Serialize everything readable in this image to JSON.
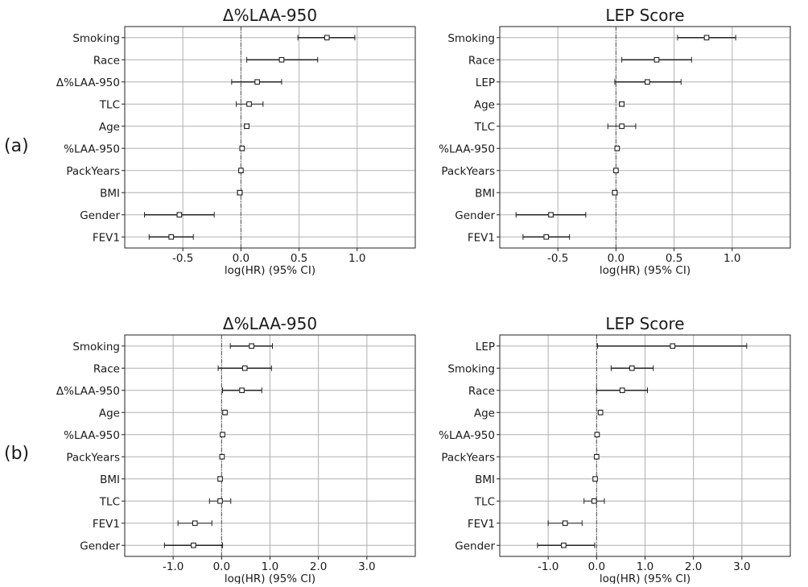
{
  "row_labels": [
    "(a)",
    "(b)"
  ],
  "chart_data": [
    {
      "type": "forest",
      "row": "(a)",
      "title": "Δ%LAA-950",
      "xlabel": "log(HR) (95% CI)",
      "xlim": [
        -1.0,
        1.5
      ],
      "xticks": [
        -0.5,
        0.0,
        0.5,
        1.0
      ],
      "xtick_labels": [
        "-0.5",
        "0.0",
        "0.5",
        "1.0"
      ],
      "grid": true,
      "reference_line": 0.0,
      "rows": [
        {
          "label": "Smoking",
          "estimate": 0.74,
          "ci": [
            0.49,
            0.98
          ]
        },
        {
          "label": "Race",
          "estimate": 0.35,
          "ci": [
            0.05,
            0.66
          ]
        },
        {
          "label": "Δ%LAA-950",
          "estimate": 0.14,
          "ci": [
            -0.08,
            0.35
          ]
        },
        {
          "label": "TLC",
          "estimate": 0.07,
          "ci": [
            -0.04,
            0.19
          ]
        },
        {
          "label": "Age",
          "estimate": 0.05,
          "ci": [
            0.03,
            0.07
          ]
        },
        {
          "label": "%LAA-950",
          "estimate": 0.01,
          "ci": [
            0.0,
            0.02
          ]
        },
        {
          "label": "PackYears",
          "estimate": 0.0,
          "ci": [
            -0.01,
            0.01
          ]
        },
        {
          "label": "BMI",
          "estimate": -0.01,
          "ci": [
            -0.03,
            0.01
          ]
        },
        {
          "label": "Gender",
          "estimate": -0.53,
          "ci": [
            -0.83,
            -0.23
          ]
        },
        {
          "label": "FEV1",
          "estimate": -0.6,
          "ci": [
            -0.79,
            -0.41
          ]
        }
      ]
    },
    {
      "type": "forest",
      "row": "(a)",
      "title": "LEP Score",
      "xlabel": "log(HR) (95% CI)",
      "xlim": [
        -1.0,
        1.5
      ],
      "xticks": [
        -0.5,
        0.0,
        0.5,
        1.0
      ],
      "xtick_labels": [
        "-0.5",
        "0.0",
        "0.5",
        "1.0"
      ],
      "grid": true,
      "reference_line": 0.0,
      "rows": [
        {
          "label": "Smoking",
          "estimate": 0.78,
          "ci": [
            0.53,
            1.03
          ]
        },
        {
          "label": "Race",
          "estimate": 0.35,
          "ci": [
            0.05,
            0.65
          ]
        },
        {
          "label": "LEP",
          "estimate": 0.27,
          "ci": [
            -0.01,
            0.56
          ]
        },
        {
          "label": "Age",
          "estimate": 0.05,
          "ci": [
            0.03,
            0.07
          ]
        },
        {
          "label": "TLC",
          "estimate": 0.05,
          "ci": [
            -0.07,
            0.17
          ]
        },
        {
          "label": "%LAA-950",
          "estimate": 0.01,
          "ci": [
            0.0,
            0.02
          ]
        },
        {
          "label": "PackYears",
          "estimate": 0.0,
          "ci": [
            -0.01,
            0.01
          ]
        },
        {
          "label": "BMI",
          "estimate": -0.01,
          "ci": [
            -0.03,
            0.01
          ]
        },
        {
          "label": "Gender",
          "estimate": -0.56,
          "ci": [
            -0.86,
            -0.26
          ]
        },
        {
          "label": "FEV1",
          "estimate": -0.6,
          "ci": [
            -0.8,
            -0.4
          ]
        }
      ]
    },
    {
      "type": "forest",
      "row": "(b)",
      "title": "Δ%LAA-950",
      "xlabel": "log(HR) (95% CI)",
      "xlim": [
        -2.0,
        4.0
      ],
      "xticks": [
        -1.0,
        0.0,
        1.0,
        2.0,
        3.0
      ],
      "xtick_labels": [
        "-1.0",
        "0.0",
        "1.0",
        "2.0",
        "3.0"
      ],
      "grid": true,
      "reference_line": 0.0,
      "rows": [
        {
          "label": "Smoking",
          "estimate": 0.62,
          "ci": [
            0.18,
            1.05
          ]
        },
        {
          "label": "Race",
          "estimate": 0.48,
          "ci": [
            -0.07,
            1.03
          ]
        },
        {
          "label": "Δ%LAA-950",
          "estimate": 0.42,
          "ci": [
            0.02,
            0.83
          ]
        },
        {
          "label": "Age",
          "estimate": 0.07,
          "ci": [
            0.05,
            0.09
          ]
        },
        {
          "label": "%LAA-950",
          "estimate": 0.02,
          "ci": [
            0.0,
            0.04
          ]
        },
        {
          "label": "PackYears",
          "estimate": 0.01,
          "ci": [
            0.0,
            0.02
          ]
        },
        {
          "label": "BMI",
          "estimate": -0.03,
          "ci": [
            -0.06,
            0.0
          ]
        },
        {
          "label": "TLC",
          "estimate": -0.03,
          "ci": [
            -0.25,
            0.19
          ]
        },
        {
          "label": "FEV1",
          "estimate": -0.55,
          "ci": [
            -0.9,
            -0.2
          ]
        },
        {
          "label": "Gender",
          "estimate": -0.58,
          "ci": [
            -1.18,
            0.02
          ]
        }
      ]
    },
    {
      "type": "forest",
      "row": "(b)",
      "title": "LEP Score",
      "xlabel": "log(HR) (95% CI)",
      "xlim": [
        -2.0,
        4.0
      ],
      "xticks": [
        -1.0,
        0.0,
        1.0,
        2.0,
        3.0
      ],
      "xtick_labels": [
        "-1.0",
        "0.0",
        "1.0",
        "2.0",
        "3.0"
      ],
      "grid": true,
      "reference_line": 0.0,
      "rows": [
        {
          "label": "LEP",
          "estimate": 1.57,
          "ci": [
            0.02,
            3.1
          ]
        },
        {
          "label": "Smoking",
          "estimate": 0.73,
          "ci": [
            0.3,
            1.17
          ]
        },
        {
          "label": "Race",
          "estimate": 0.53,
          "ci": [
            0.0,
            1.05
          ]
        },
        {
          "label": "Age",
          "estimate": 0.08,
          "ci": [
            0.06,
            0.1
          ]
        },
        {
          "label": "%LAA-950",
          "estimate": 0.01,
          "ci": [
            0.0,
            0.02
          ]
        },
        {
          "label": "PackYears",
          "estimate": 0.0,
          "ci": [
            -0.01,
            0.01
          ]
        },
        {
          "label": "BMI",
          "estimate": -0.03,
          "ci": [
            -0.06,
            0.0
          ]
        },
        {
          "label": "TLC",
          "estimate": -0.05,
          "ci": [
            -0.26,
            0.16
          ]
        },
        {
          "label": "FEV1",
          "estimate": -0.65,
          "ci": [
            -1.0,
            -0.3
          ]
        },
        {
          "label": "Gender",
          "estimate": -0.68,
          "ci": [
            -1.22,
            -0.04
          ]
        }
      ]
    }
  ],
  "colors": {
    "background": "#ffffff",
    "grid": "#b0b0b0",
    "axis": "#222222",
    "marker": "#222222",
    "reference_line": "#555555"
  }
}
